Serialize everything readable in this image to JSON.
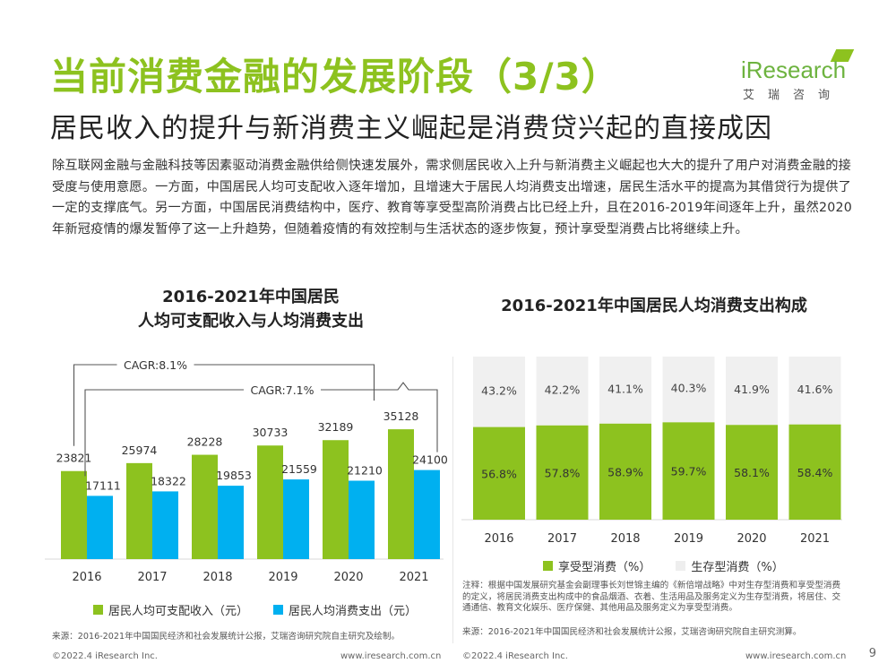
{
  "header": {
    "title": "当前消费金融的发展阶段（3/3）",
    "subtitle": "居民收入的提升与新消费主义崛起是消费贷兴起的直接成因",
    "logo_text": "iResearch",
    "logo_sub": "艾瑞咨询"
  },
  "intro": "除互联网金融与金融科技等因素驱动消费金融供给侧快速发展外，需求侧居民收入上升与新消费主义崛起也大大的提升了用户对消费金融的接受度与使用意愿。一方面，中国居民人均可支配收入逐年增加，且增速大于居民人均消费支出增速，居民生活水平的提高为其借贷行为提供了一定的支撑底气。另一方面，中国居民消费结构中，医疗、教育等享受型高阶消费占比已经上升，且在2016-2019年间逐年上升，虽然2020年新冠疫情的爆发暂停了这一上升趋势，但随着疫情的有效控制与生活状态的逐步恢复，预计享受型消费占比将继续上升。",
  "colors": {
    "accent_green": "#8dc21f",
    "accent_blue": "#00b0f0",
    "bar_gray": "#f0f0f0"
  },
  "chart_data": [
    {
      "type": "bar",
      "title_line1": "2016-2021年中国居民",
      "title_line2": "人均可支配收入与人均消费支出",
      "categories": [
        "2016",
        "2017",
        "2018",
        "2019",
        "2020",
        "2021"
      ],
      "series": [
        {
          "name": "居民人均可支配收入（元）",
          "values": [
            23821,
            25974,
            28228,
            30733,
            32189,
            35128
          ]
        },
        {
          "name": "居民人均消费支出（元）",
          "values": [
            17111,
            18322,
            19853,
            21559,
            21210,
            24100
          ]
        }
      ],
      "annotations": [
        "CAGR:8.1%",
        "CAGR:7.1%"
      ],
      "ylim": [
        0,
        40000
      ]
    },
    {
      "type": "bar",
      "stacked": true,
      "percent": true,
      "title": "2016-2021年中国居民人均消费支出构成",
      "categories": [
        "2016",
        "2017",
        "2018",
        "2019",
        "2020",
        "2021"
      ],
      "series": [
        {
          "name": "享受型消费（%）",
          "values": [
            56.8,
            57.8,
            58.9,
            59.7,
            58.1,
            58.4
          ],
          "labels": [
            "56.8%",
            "57.8%",
            "58.9%",
            "59.7%",
            "58.1%",
            "58.4%"
          ]
        },
        {
          "name": "生存型消费（%）",
          "values": [
            43.2,
            42.2,
            41.1,
            40.3,
            41.9,
            41.6
          ],
          "labels": [
            "43.2%",
            "42.2%",
            "41.1%",
            "40.3%",
            "41.9%",
            "41.6%"
          ]
        }
      ],
      "ylim": [
        0,
        100
      ]
    }
  ],
  "left_source": "来源：2016-2021年中国国民经济和社会发展统计公报，艾瑞咨询研究院自主研究及绘制。",
  "right_note": "注释：根据中国发展研究基金会副理事长刘世锦主编的《新倍增战略》中对生存型消费和享受型消费的定义，将居民消费支出构成中的食品烟酒、衣着、生活用品及服务定义为生存型消费，将居住、交通通信、教育文化娱乐、医疗保健、其他用品及服务定义为享受型消费。",
  "right_source": "来源：2016-2021年中国国民经济和社会发展统计公报，艾瑞咨询研究院自主研究测算。",
  "footer": {
    "left_copyright": "©2022.4 iResearch Inc.",
    "left_url": "www.iresearch.com.cn",
    "right_copyright": "©2022.4 iResearch Inc.",
    "right_url": "www.iresearch.com.cn",
    "page_number": "9"
  }
}
